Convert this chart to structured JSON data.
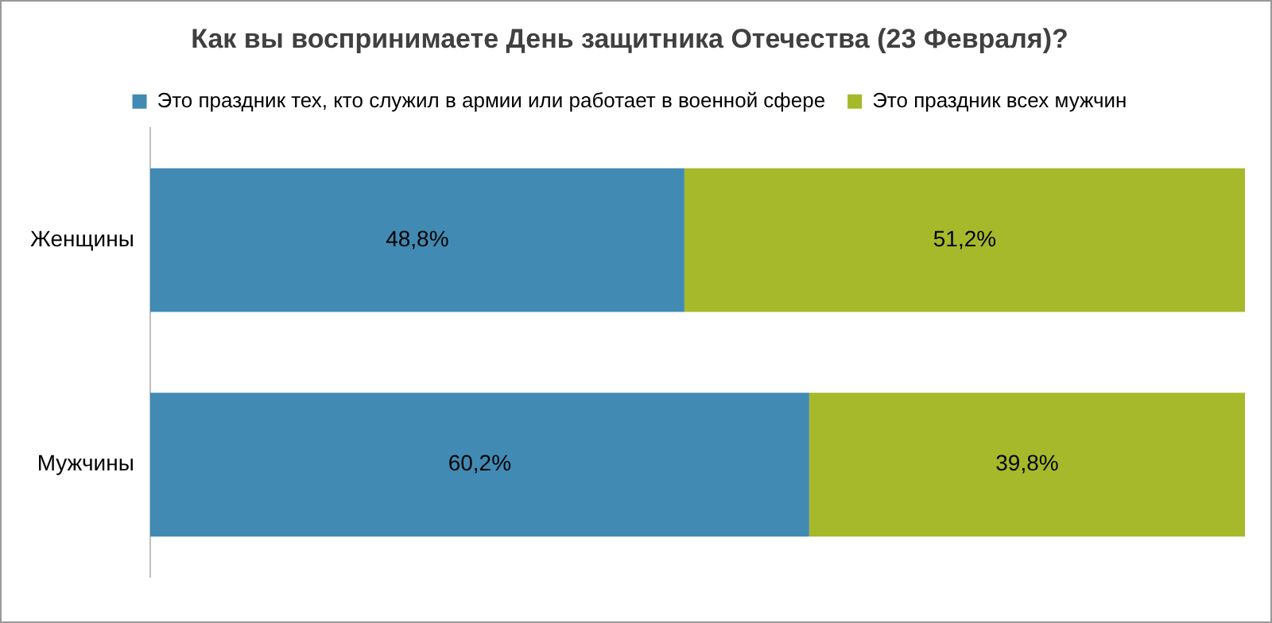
{
  "chart_data": {
    "type": "bar",
    "orientation": "horizontal",
    "stacked": true,
    "title": "Как вы воспринимаете День защитника Отечества (23 Февраля)?",
    "categories": [
      "Женщины",
      "Мужчины"
    ],
    "series": [
      {
        "name": "Это праздник тех, кто служил в армии или работает в военной сфере",
        "color": "#418ab3",
        "values": [
          48.8,
          60.2
        ],
        "value_labels": [
          "48,8%",
          "60,2%"
        ]
      },
      {
        "name": "Это праздник всех мужчин",
        "color": "#a5b92a",
        "values": [
          51.2,
          39.8
        ],
        "value_labels": [
          "51,2%",
          "39,8%"
        ]
      }
    ],
    "xlim": [
      0,
      100
    ],
    "tick_labels": "y",
    "grid": false,
    "legend": "top"
  }
}
